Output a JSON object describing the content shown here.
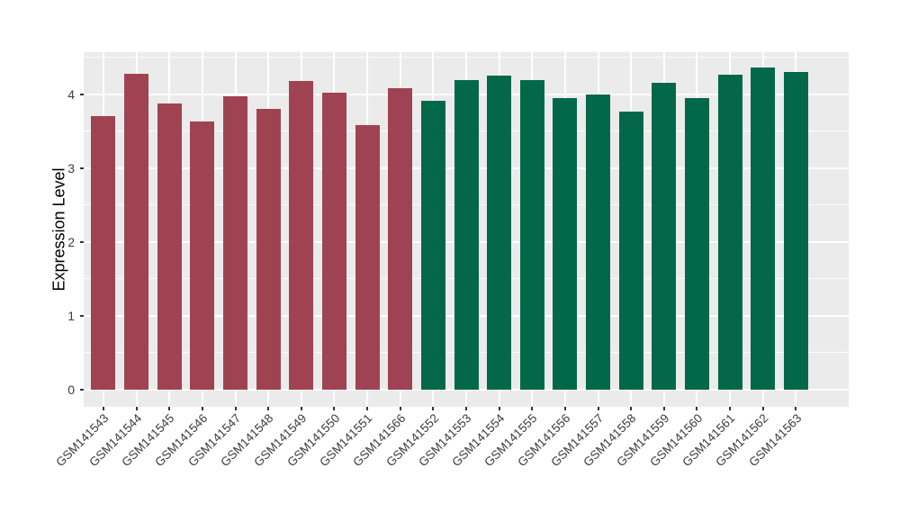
{
  "figure": {
    "background": "#ffffff",
    "panel_background": "#EBEBEB",
    "gridline_color": "#FFFFFF",
    "tick_color": "#333333",
    "axis_text_color": "#3c3c3c"
  },
  "chart_data": {
    "type": "bar",
    "title": "",
    "xlabel": "",
    "ylabel": "Expression Level",
    "legend": "none",
    "x_tick_label_angle": 45,
    "grid": "major+minor horizontal white lines, major vertical white line at each category",
    "yticks": [
      0,
      1,
      2,
      3,
      4
    ],
    "ylim": [
      -0.23,
      4.57
    ],
    "categories": [
      "GSM141543",
      "GSM141544",
      "GSM141545",
      "GSM141546",
      "GSM141547",
      "GSM141548",
      "GSM141549",
      "GSM141550",
      "GSM141551",
      "GSM141566",
      "GSM141552",
      "GSM141553",
      "GSM141554",
      "GSM141555",
      "GSM141556",
      "GSM141557",
      "GSM141558",
      "GSM141559",
      "GSM141560",
      "GSM141561",
      "GSM141562",
      "GSM141563"
    ],
    "values": [
      3.71,
      4.28,
      3.88,
      3.64,
      3.98,
      3.8,
      4.18,
      4.02,
      3.59,
      4.09,
      3.91,
      4.19,
      4.26,
      4.19,
      3.95,
      4.0,
      3.77,
      4.16,
      3.95,
      4.27,
      4.37,
      4.31
    ],
    "group_colors": {
      "left_group": "#9F4352",
      "right_group": "#026849"
    },
    "bar_colors": [
      "#9F4352",
      "#9F4352",
      "#9F4352",
      "#9F4352",
      "#9F4352",
      "#9F4352",
      "#9F4352",
      "#9F4352",
      "#9F4352",
      "#9F4352",
      "#026849",
      "#026849",
      "#026849",
      "#026849",
      "#026849",
      "#026849",
      "#026849",
      "#026849",
      "#026849",
      "#026849",
      "#026849",
      "#026849"
    ]
  }
}
